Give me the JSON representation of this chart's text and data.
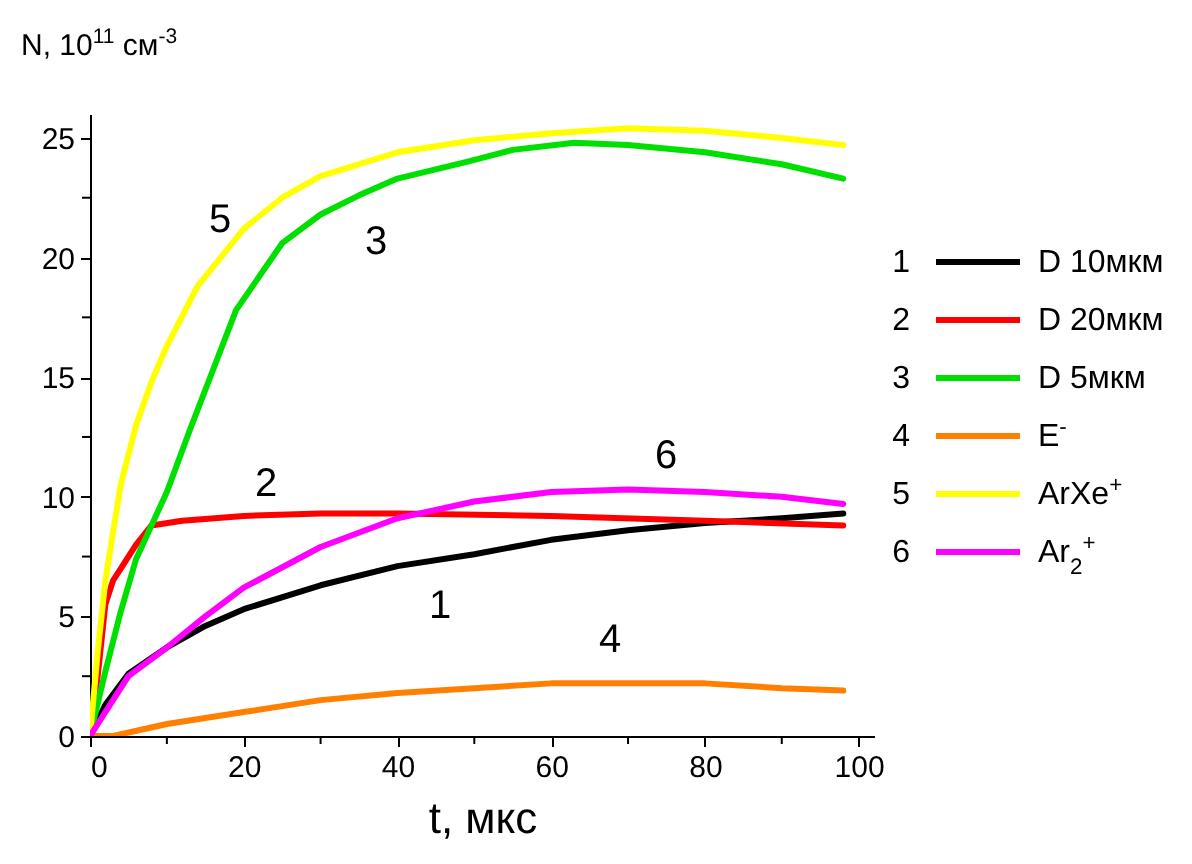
{
  "chart_data": {
    "type": "line",
    "xlabel": "t, мкс",
    "ylabel": "N, 10$^{11}$ см$^{-3}$",
    "xlim": [
      0,
      102
    ],
    "ylim": [
      0,
      26
    ],
    "xticks": [
      0,
      {
        "value": 10,
        "label": null
      },
      20,
      {
        "value": 30,
        "label": null
      },
      40,
      {
        "value": 50,
        "label": null
      },
      60,
      {
        "value": 70,
        "label": null
      },
      80,
      {
        "value": 90,
        "label": null
      },
      100
    ],
    "yticks": [
      0,
      {
        "value": 2.5,
        "label": null
      },
      5,
      {
        "value": 7.5,
        "label": null
      },
      10,
      {
        "value": 12.5,
        "label": null
      },
      15,
      {
        "value": 17.5,
        "label": null
      },
      20,
      {
        "value": 22.5,
        "label": null
      },
      25
    ],
    "legend": "right",
    "marker": "none",
    "line_style": "solid",
    "series": [
      {
        "name": "D 10мкм",
        "color": "#000000",
        "x": [
          0,
          2,
          5,
          10,
          15,
          20,
          30,
          40,
          50,
          60,
          70,
          80,
          90,
          98
        ],
        "values": [
          0,
          1.3,
          2.6,
          3.7,
          4.6,
          5.3,
          6.3,
          7.1,
          7.6,
          8.2,
          8.6,
          8.9,
          9.1,
          9.3
        ]
      },
      {
        "name": "D 20мкм",
        "color": "#ff0000",
        "x": [
          0,
          1,
          2,
          3,
          4,
          6,
          8,
          12,
          20,
          30,
          40,
          60,
          80,
          98
        ],
        "values": [
          0,
          2.5,
          5.5,
          6.5,
          7.0,
          8.0,
          8.8,
          9.0,
          9.2,
          9.3,
          9.3,
          9.2,
          9.0,
          8.8
        ]
      },
      {
        "name": "D 5мкм",
        "color": "#00e000",
        "x": [
          0,
          2,
          4,
          6,
          8,
          10,
          13,
          16,
          19,
          25,
          30,
          35,
          40,
          49,
          55,
          63,
          70,
          80,
          90,
          98
        ],
        "values": [
          0,
          2.7,
          5.2,
          7.4,
          8.8,
          10.2,
          12.8,
          15.3,
          17.8,
          20.6,
          21.8,
          22.6,
          23.3,
          24.0,
          24.5,
          24.8,
          24.7,
          24.4,
          23.9,
          23.3
        ]
      },
      {
        "name": "E$^{-}$",
        "color": "#ff8000",
        "x": [
          0,
          3,
          10,
          20,
          30,
          40,
          50,
          60,
          70,
          80,
          90,
          98
        ],
        "values": [
          0,
          0,
          0.5,
          1.0,
          1.5,
          1.8,
          2.0,
          2.2,
          2.2,
          2.2,
          2.0,
          1.9
        ]
      },
      {
        "name": "ArXe$^{+}$",
        "color": "#ffff00",
        "x": [
          0,
          1,
          2,
          4,
          6,
          8,
          10,
          14,
          17,
          20,
          25,
          30,
          40,
          50,
          60,
          70,
          80,
          90,
          98
        ],
        "values": [
          0,
          3.5,
          6.5,
          10.5,
          13.0,
          14.8,
          16.3,
          18.8,
          20.0,
          21.2,
          22.5,
          23.4,
          24.4,
          24.9,
          25.2,
          25.4,
          25.3,
          25.0,
          24.7
        ]
      },
      {
        "name": "Ar$_{2}$$^{+}$",
        "color": "#ff00ff",
        "x": [
          0,
          5,
          10,
          15,
          20,
          30,
          40,
          50,
          60,
          70,
          80,
          90,
          98
        ],
        "values": [
          0,
          2.5,
          3.7,
          5.0,
          6.2,
          7.9,
          9.1,
          9.8,
          10.2,
          10.3,
          10.2,
          10.0,
          9.7
        ]
      }
    ],
    "annotations": [
      "1",
      "2",
      "3",
      "4",
      "5",
      "6"
    ]
  }
}
